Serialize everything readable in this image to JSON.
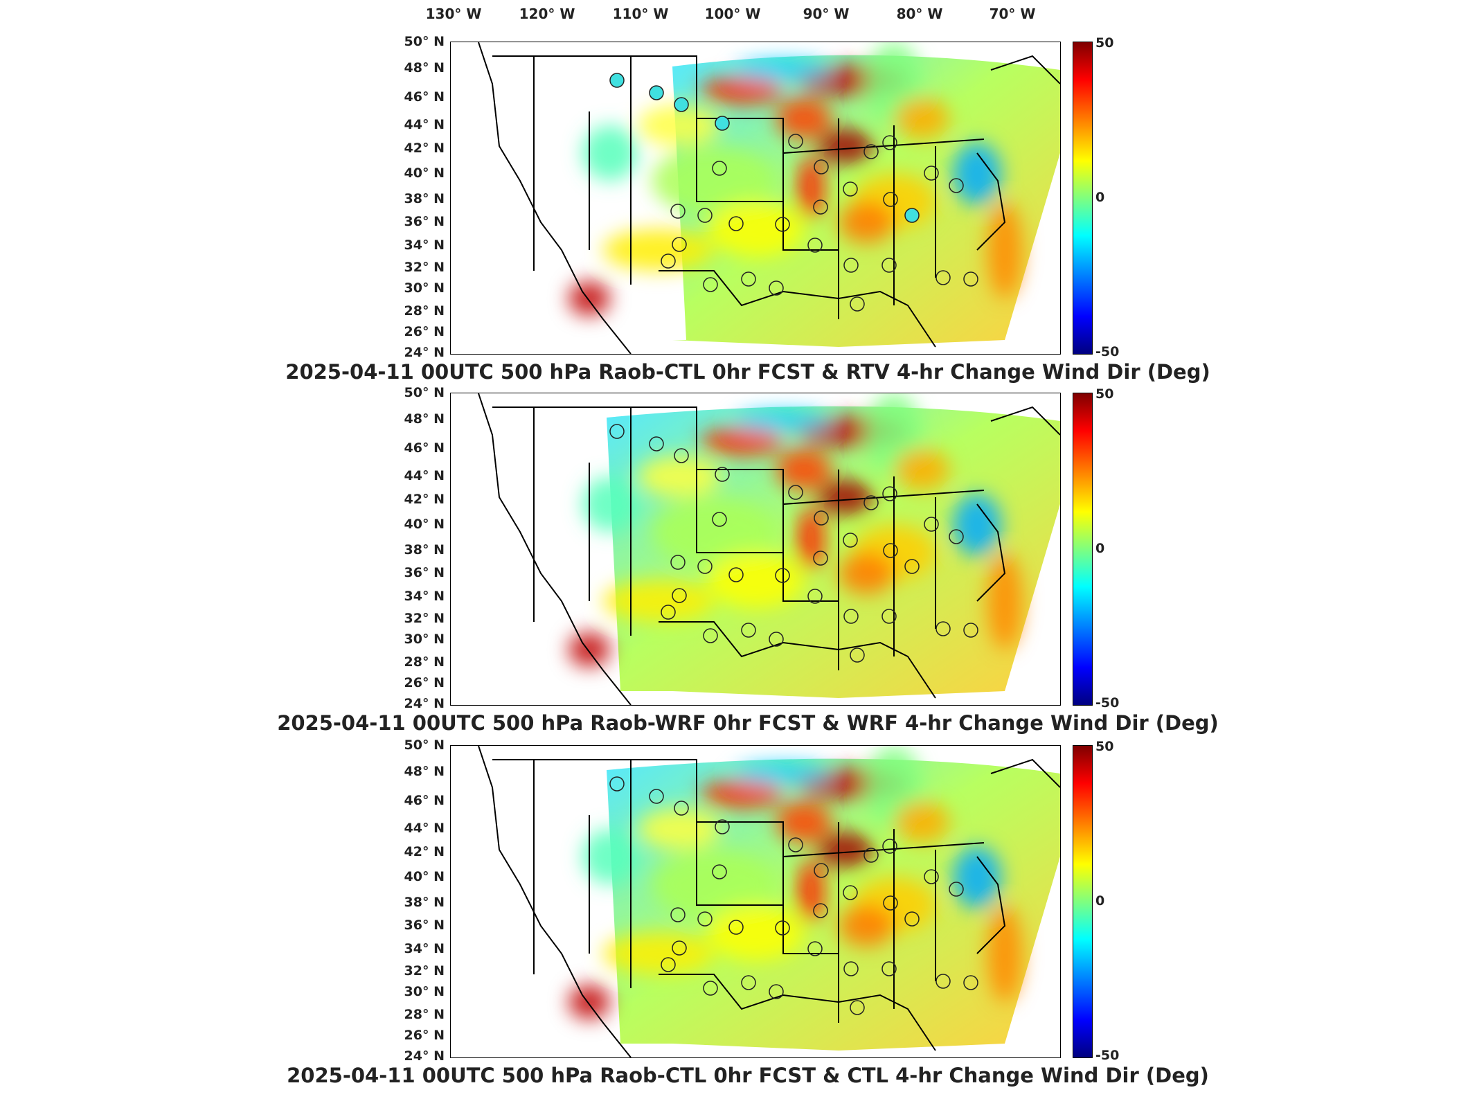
{
  "map": {
    "lon_labels": [
      "130° W",
      "120° W",
      "110° W",
      "100° W",
      "90° W",
      "80° W",
      "70° W"
    ],
    "lat_labels": [
      "50° N",
      "48° N",
      "46° N",
      "44° N",
      "42° N",
      "40° N",
      "38° N",
      "36° N",
      "34° N",
      "32° N",
      "30° N",
      "28° N",
      "26° N",
      "24° N"
    ],
    "colorbar": {
      "max": "50",
      "mid": "0",
      "min": "-50",
      "colormap": "jet"
    }
  },
  "panels": [
    {
      "title": "2025-04-11 00UTC 500 hPa Raob-CTL 0hr FCST & RTV 4-hr Change Wind Dir (Deg)"
    },
    {
      "title": "2025-04-11 00UTC 500 hPa Raob-WRF 0hr FCST & WRF 4-hr Change Wind Dir (Deg)"
    },
    {
      "title": "2025-04-11 00UTC 500 hPa Raob-CTL 0hr FCST & CTL 4-hr Change Wind Dir (Deg)"
    }
  ]
}
